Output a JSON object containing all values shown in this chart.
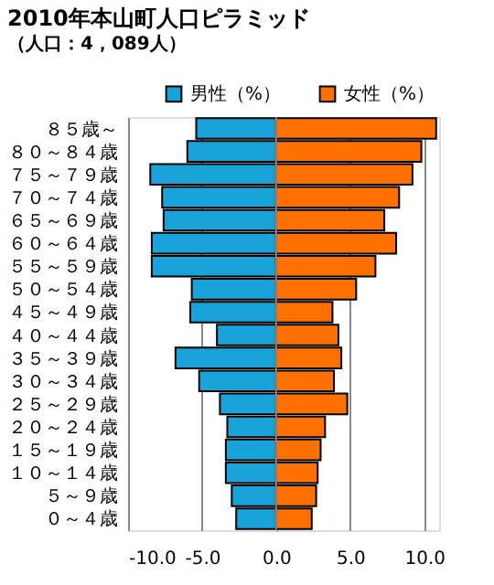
{
  "chart_data": {
    "type": "bar",
    "orientation": "horizontal",
    "title": "2010年本山町人口ピラミッド",
    "subtitle": "（人口：4，089人）",
    "categories": [
      "８５歳～",
      "８０～８４歳",
      "７５～７９歳",
      "７０～７４歳",
      "６５～６９歳",
      "６０～６４歳",
      "５５～５９歳",
      "５０～５４歳",
      "４５～４９歳",
      "４０～４４歳",
      "３５～３９歳",
      "３０～３４歳",
      "２５～２９歳",
      "２０～２４歳",
      "１５～１９歳",
      "１０～１４歳",
      "５～９歳",
      "０～４歳"
    ],
    "series": [
      {
        "name": "男性（%）",
        "color": "#1aa3d9",
        "values": [
          -5.4,
          -6.0,
          -8.5,
          -7.7,
          -7.6,
          -8.4,
          -8.4,
          -5.7,
          -5.8,
          -4.0,
          -6.8,
          -5.2,
          -3.8,
          -3.3,
          -3.4,
          -3.4,
          -3.0,
          -2.7
        ]
      },
      {
        "name": "女性（%）",
        "color": "#ff7000",
        "values": [
          10.8,
          9.8,
          9.2,
          8.3,
          7.3,
          8.1,
          6.7,
          5.4,
          3.8,
          4.2,
          4.4,
          3.9,
          4.8,
          3.3,
          3.0,
          2.8,
          2.7,
          2.4
        ]
      }
    ],
    "xlim": [
      -10,
      11
    ],
    "xticks": [
      {
        "value": -10,
        "label": "-10.0"
      },
      {
        "value": -5,
        "label": "-5.0"
      },
      {
        "value": 0,
        "label": "0.0"
      },
      {
        "value": 5,
        "label": "5.0"
      },
      {
        "value": 10,
        "label": "10.0"
      }
    ],
    "grid": "x",
    "legend": "top right",
    "stacked": true
  }
}
